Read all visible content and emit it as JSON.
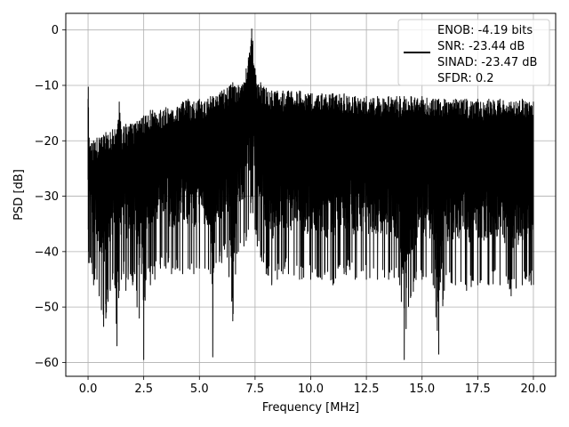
{
  "chart_data": {
    "type": "line",
    "xlabel": "Frequency [MHz]",
    "ylabel": "PSD [dB]",
    "xlim": [
      -1.0,
      21.0
    ],
    "ylim": [
      -62.5,
      3.0
    ],
    "xticks": [
      0.0,
      2.5,
      5.0,
      7.5,
      10.0,
      12.5,
      15.0,
      17.5,
      20.0
    ],
    "xtick_labels": [
      "0.0",
      "2.5",
      "5.0",
      "7.5",
      "10.0",
      "12.5",
      "15.0",
      "17.5",
      "20.0"
    ],
    "yticks": [
      0,
      -10,
      -20,
      -30,
      -40,
      -50,
      -60
    ],
    "ytick_labels": [
      "0",
      "−10",
      "−20",
      "−30",
      "−40",
      "−50",
      "−60"
    ],
    "grid": true,
    "legend_position": "top-right",
    "series": [
      {
        "name": "ENOB: -4.19 bits\nSNR: -23.44 dB\nSINAD: -23.47 dB\nSFDR: 0.2",
        "color": "#000000",
        "x": [
          0.0,
          0.01,
          0.02,
          0.03,
          0.05,
          0.1,
          0.15,
          0.2,
          0.25,
          0.3,
          0.4,
          0.5,
          0.6,
          0.7,
          0.8,
          0.9,
          1.0,
          1.1,
          1.2,
          1.3,
          1.4,
          1.5,
          1.6,
          1.7,
          1.8,
          1.9,
          2.0,
          2.1,
          2.2,
          2.3,
          2.4,
          2.5,
          2.6,
          2.7,
          2.8,
          2.9,
          3.0,
          3.25,
          3.5,
          3.75,
          4.0,
          4.25,
          4.5,
          4.75,
          5.0,
          5.25,
          5.5,
          5.6,
          5.75,
          6.0,
          6.25,
          6.5,
          6.75,
          7.0,
          7.1,
          7.2,
          7.3,
          7.35,
          7.4,
          7.5,
          7.6,
          7.75,
          8.0,
          8.25,
          8.5,
          8.75,
          9.0,
          9.5,
          10.0,
          10.5,
          11.0,
          11.5,
          12.0,
          12.5,
          13.0,
          13.5,
          14.0,
          14.2,
          14.5,
          15.0,
          15.5,
          15.75,
          16.0,
          16.5,
          17.0,
          17.5,
          18.0,
          18.5,
          19.0,
          19.5,
          20.0
        ],
        "y_upper": [
          -12.5,
          -10.3,
          -14.0,
          -20.0,
          -19.5,
          -21.0,
          -20.5,
          -20.5,
          -20.0,
          -20.5,
          -19.5,
          -19.5,
          -19.5,
          -19.0,
          -18.5,
          -19.0,
          -18.5,
          -18.0,
          -18.0,
          -18.0,
          -13.0,
          -18.0,
          -17.5,
          -17.0,
          -17.5,
          -17.0,
          -17.0,
          -17.0,
          -16.5,
          -16.5,
          -16.0,
          -15.5,
          -15.5,
          -15.5,
          -14.5,
          -14.5,
          -15.0,
          -14.5,
          -14.0,
          -14.5,
          -14.0,
          -13.0,
          -12.5,
          -13.0,
          -12.5,
          -13.0,
          -12.0,
          -12.0,
          -12.0,
          -11.0,
          -10.5,
          -9.5,
          -10.0,
          -9.5,
          -7.0,
          -5.0,
          -3.0,
          0.2,
          -2.0,
          -7.0,
          -10.0,
          -9.5,
          -10.5,
          -11.0,
          -11.0,
          -11.0,
          -11.0,
          -11.0,
          -11.5,
          -11.5,
          -11.5,
          -11.5,
          -12.0,
          -12.0,
          -12.0,
          -12.0,
          -12.0,
          -12.0,
          -12.0,
          -12.0,
          -12.5,
          -12.5,
          -12.5,
          -12.5,
          -12.5,
          -12.5,
          -12.5,
          -12.5,
          -13.0,
          -12.5,
          -13.0
        ],
        "y_lower": [
          -27.0,
          -36.0,
          -40.0,
          -42.0,
          -42.0,
          -41.0,
          -42.0,
          -44.0,
          -46.0,
          -45.0,
          -45.0,
          -48.0,
          -50.5,
          -53.5,
          -52.0,
          -49.0,
          -47.0,
          -45.0,
          -46.0,
          -57.0,
          -47.0,
          -45.0,
          -44.0,
          -47.0,
          -45.0,
          -44.0,
          -46.0,
          -44.0,
          -50.0,
          -52.0,
          -44.0,
          -59.5,
          -45.0,
          -43.0,
          -46.0,
          -44.0,
          -45.0,
          -43.0,
          -43.0,
          -44.0,
          -43.0,
          -44.0,
          -43.0,
          -44.0,
          -43.0,
          -43.0,
          -44.0,
          -59.0,
          -42.0,
          -42.0,
          -41.0,
          -52.5,
          -40.0,
          -39.0,
          -38.0,
          -36.0,
          -33.0,
          -30.0,
          -33.0,
          -36.0,
          -39.0,
          -41.0,
          -44.0,
          -46.0,
          -45.0,
          -44.0,
          -44.0,
          -45.0,
          -45.0,
          -45.0,
          -46.0,
          -44.0,
          -45.0,
          -45.0,
          -45.0,
          -45.0,
          -46.0,
          -59.5,
          -48.0,
          -45.0,
          -46.0,
          -58.5,
          -47.0,
          -46.0,
          -47.0,
          -46.0,
          -46.0,
          -46.0,
          -48.0,
          -46.0,
          -46.0
        ]
      }
    ]
  }
}
